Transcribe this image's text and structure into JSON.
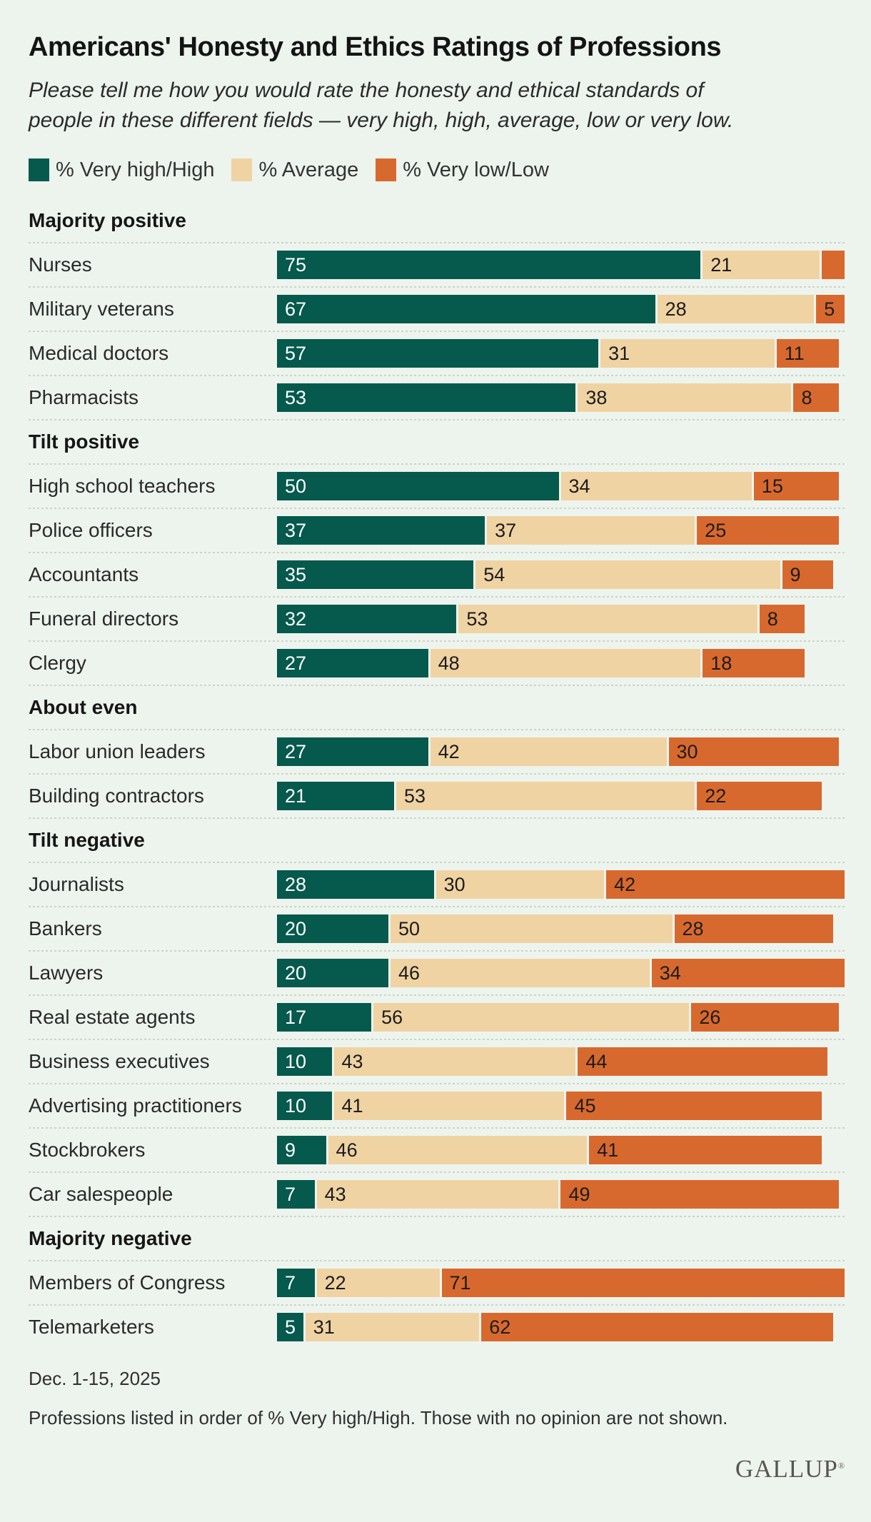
{
  "page": {
    "title": "Americans' Honesty and Ethics Ratings of Professions",
    "subtitle": "Please tell me how you would rate the honesty and ethical standards of people in these different fields — very high, high, average, low or very low."
  },
  "colors": {
    "background": "#edf4ed",
    "very_high": "#05594d",
    "average": "#f0d3a3",
    "very_low": "#d8692e",
    "separator": "#ccd3cb",
    "text_dark": "#1b1b1b",
    "text_light": "#ffffff",
    "brand_gray": "#57564f"
  },
  "legend": {
    "items": [
      {
        "label": "% Very high/High",
        "key": "very_high"
      },
      {
        "label": "% Average",
        "key": "average"
      },
      {
        "label": "% Very low/Low",
        "key": "very_low"
      }
    ]
  },
  "chart_data": {
    "type": "bar",
    "orientation": "horizontal",
    "stacked": true,
    "xlim": [
      0,
      100
    ],
    "grid": false,
    "legend_position": "top",
    "series_names": [
      "% Very high/High",
      "% Average",
      "% Very low/Low"
    ],
    "sections": [
      {
        "label": "Majority positive",
        "rows": [
          {
            "label": "Nurses",
            "values": [
              75,
              21,
              4
            ],
            "value_labels": [
              "75",
              "21",
              ""
            ]
          },
          {
            "label": "Military veterans",
            "values": [
              67,
              28,
              5
            ],
            "value_labels": [
              "67",
              "28",
              "5"
            ]
          },
          {
            "label": "Medical doctors",
            "values": [
              57,
              31,
              11
            ],
            "value_labels": [
              "57",
              "31",
              "11"
            ]
          },
          {
            "label": "Pharmacists",
            "values": [
              53,
              38,
              8
            ],
            "value_labels": [
              "53",
              "38",
              "8"
            ]
          }
        ]
      },
      {
        "label": "Tilt positive",
        "rows": [
          {
            "label": "High school teachers",
            "values": [
              50,
              34,
              15
            ],
            "value_labels": [
              "50",
              "34",
              "15"
            ]
          },
          {
            "label": "Police officers",
            "values": [
              37,
              37,
              25
            ],
            "value_labels": [
              "37",
              "37",
              "25"
            ]
          },
          {
            "label": "Accountants",
            "values": [
              35,
              54,
              9
            ],
            "value_labels": [
              "35",
              "54",
              "9"
            ]
          },
          {
            "label": "Funeral directors",
            "values": [
              32,
              53,
              8
            ],
            "value_labels": [
              "32",
              "53",
              "8"
            ]
          },
          {
            "label": "Clergy",
            "values": [
              27,
              48,
              18
            ],
            "value_labels": [
              "27",
              "48",
              "18"
            ]
          }
        ]
      },
      {
        "label": "About even",
        "rows": [
          {
            "label": "Labor union leaders",
            "values": [
              27,
              42,
              30
            ],
            "value_labels": [
              "27",
              "42",
              "30"
            ]
          },
          {
            "label": "Building contractors",
            "values": [
              21,
              53,
              22
            ],
            "value_labels": [
              "21",
              "53",
              "22"
            ]
          }
        ]
      },
      {
        "label": "Tilt negative",
        "rows": [
          {
            "label": "Journalists",
            "values": [
              28,
              30,
              42
            ],
            "value_labels": [
              "28",
              "30",
              "42"
            ]
          },
          {
            "label": "Bankers",
            "values": [
              20,
              50,
              28
            ],
            "value_labels": [
              "20",
              "50",
              "28"
            ]
          },
          {
            "label": "Lawyers",
            "values": [
              20,
              46,
              34
            ],
            "value_labels": [
              "20",
              "46",
              "34"
            ]
          },
          {
            "label": "Real estate agents",
            "values": [
              17,
              56,
              26
            ],
            "value_labels": [
              "17",
              "56",
              "26"
            ]
          },
          {
            "label": "Business executives",
            "values": [
              10,
              43,
              44
            ],
            "value_labels": [
              "10",
              "43",
              "44"
            ]
          },
          {
            "label": "Advertising practitioners",
            "values": [
              10,
              41,
              45
            ],
            "value_labels": [
              "10",
              "41",
              "45"
            ]
          },
          {
            "label": "Stockbrokers",
            "values": [
              9,
              46,
              41
            ],
            "value_labels": [
              "9",
              "46",
              "41"
            ]
          },
          {
            "label": "Car salespeople",
            "values": [
              7,
              43,
              49
            ],
            "value_labels": [
              "7",
              "43",
              "49"
            ]
          }
        ]
      },
      {
        "label": "Majority negative",
        "rows": [
          {
            "label": "Members of Congress",
            "values": [
              7,
              22,
              71
            ],
            "value_labels": [
              "7",
              "22",
              "71"
            ]
          },
          {
            "label": "Telemarketers",
            "values": [
              5,
              31,
              62
            ],
            "value_labels": [
              "5",
              "31",
              "62"
            ]
          }
        ]
      }
    ]
  },
  "footer": {
    "date": "Dec. 1-15, 2025",
    "note": "Professions listed in order of % Very high/High. Those with no opinion are not shown.",
    "brand": "GALLUP",
    "brand_mark": "®"
  }
}
